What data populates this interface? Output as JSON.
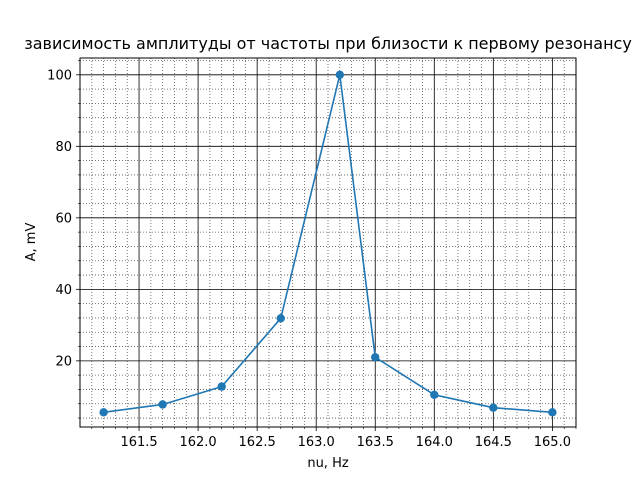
{
  "chart_data": {
    "type": "line",
    "title": "зависимость амплитуды от частоты при близости к первому резонансу",
    "xlabel": "nu, Hz",
    "ylabel": "A, mV",
    "xlim": [
      161.0,
      165.2
    ],
    "ylim": [
      1.5,
      104.7
    ],
    "xticks": [
      161.5,
      162.0,
      162.5,
      163.0,
      163.5,
      164.0,
      164.5,
      165.0
    ],
    "xtick_labels": [
      "161.5",
      "162.0",
      "162.5",
      "163.0",
      "163.5",
      "164.0",
      "164.5",
      "165.0"
    ],
    "yticks": [
      20,
      40,
      60,
      80,
      100
    ],
    "ytick_labels": [
      "20",
      "40",
      "60",
      "80",
      "100"
    ],
    "grid": true,
    "minor_grid": true,
    "series": [
      {
        "color": "#1f77b4",
        "marker": "circle",
        "x": [
          161.2,
          161.7,
          162.2,
          162.7,
          163.2,
          163.5,
          164.0,
          164.5,
          165.0
        ],
        "y": [
          5.6,
          7.8,
          12.8,
          31.9,
          100.0,
          21.0,
          10.5,
          6.9,
          5.6
        ]
      }
    ]
  }
}
